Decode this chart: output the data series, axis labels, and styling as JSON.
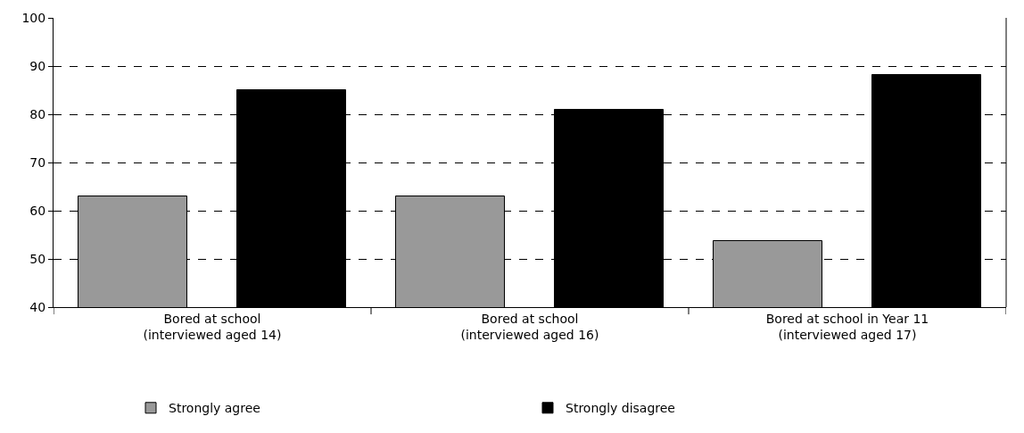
{
  "chart_data": {
    "type": "bar",
    "categories": [
      "Bored at school\n(interviewed aged 14)",
      "Bored at school\n(interviewed aged 16)",
      "Bored at school in Year 11\n(interviewed aged 17)"
    ],
    "series": [
      {
        "name": "Strongly agree",
        "color": "#999999",
        "values": [
          63,
          63,
          53.7
        ]
      },
      {
        "name": "Strongly disagree",
        "color": "#000000",
        "values": [
          85,
          81,
          88.2
        ]
      }
    ],
    "ylim": [
      40,
      100
    ],
    "yticks": [
      40,
      50,
      60,
      70,
      80,
      90,
      100
    ],
    "grid": "y",
    "legend": "bottom"
  }
}
